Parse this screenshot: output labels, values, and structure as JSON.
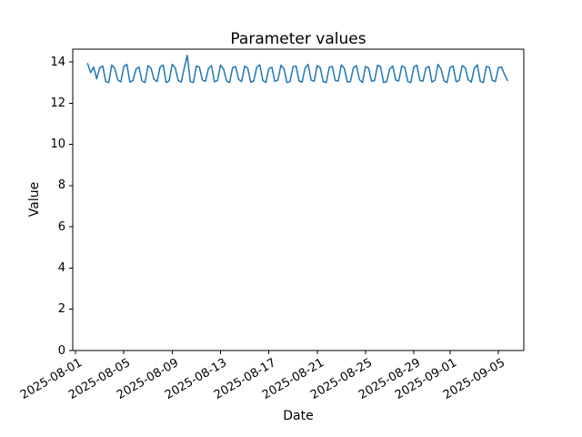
{
  "chart_data": {
    "type": "line",
    "title": "Parameter values",
    "xlabel": "Date",
    "ylabel": "Value",
    "line_color": "#1f77b4",
    "background_color": "#ffffff",
    "text_color": "#000000",
    "grid": false,
    "legend": null,
    "ylim": [
      0,
      14.62
    ],
    "xlim_days": [
      -0.23,
      37.1
    ],
    "yticks": [
      0,
      2,
      4,
      6,
      8,
      10,
      12,
      14
    ],
    "xticks": [
      {
        "label": "2025-08-01",
        "day": 0
      },
      {
        "label": "2025-08-05",
        "day": 4
      },
      {
        "label": "2025-08-09",
        "day": 8
      },
      {
        "label": "2025-08-13",
        "day": 12
      },
      {
        "label": "2025-08-17",
        "day": 16
      },
      {
        "label": "2025-08-21",
        "day": 20
      },
      {
        "label": "2025-08-25",
        "day": 24
      },
      {
        "label": "2025-08-29",
        "day": 28
      },
      {
        "label": "2025-09-01",
        "day": 31
      },
      {
        "label": "2025-09-05",
        "day": 35
      }
    ],
    "x_tick_rotation_deg": 30,
    "series": [
      {
        "name": "parameter-values",
        "x_start_day": 1.0,
        "x_step_days": 0.25,
        "values": [
          13.92,
          13.48,
          13.75,
          13.18,
          13.72,
          13.8,
          13.05,
          13.0,
          13.85,
          13.68,
          13.12,
          13.03,
          13.78,
          13.88,
          13.02,
          13.1,
          13.65,
          13.75,
          13.08,
          13.0,
          13.82,
          13.7,
          13.15,
          13.05,
          13.75,
          13.85,
          13.0,
          13.08,
          13.88,
          13.72,
          13.1,
          13.02,
          13.7,
          14.32,
          13.05,
          13.0,
          13.8,
          13.75,
          13.12,
          13.06,
          13.68,
          13.82,
          13.04,
          13.1,
          13.85,
          13.65,
          13.08,
          13.0,
          13.72,
          13.78,
          13.15,
          13.05,
          13.8,
          13.7,
          13.02,
          13.08,
          13.75,
          13.86,
          13.1,
          13.0,
          13.68,
          13.74,
          13.06,
          13.12,
          13.84,
          13.66,
          13.0,
          13.05,
          13.76,
          13.8,
          13.08,
          13.02,
          13.7,
          13.88,
          13.12,
          13.06,
          13.82,
          13.72,
          13.04,
          13.0,
          13.74,
          13.78,
          13.1,
          13.08,
          13.86,
          13.68,
          13.02,
          13.05,
          13.72,
          13.82,
          13.14,
          13.0,
          13.78,
          13.7,
          13.06,
          13.1,
          13.84,
          13.76,
          13.0,
          13.04,
          13.66,
          13.8,
          13.12,
          13.08,
          13.8,
          13.74,
          13.05,
          13.0,
          13.76,
          13.84,
          13.1,
          13.06,
          13.7,
          13.78,
          13.02,
          13.12,
          13.88,
          13.66,
          13.08,
          13.0,
          13.74,
          13.8,
          13.04,
          13.1,
          13.82,
          13.72,
          13.14,
          13.02,
          13.68,
          13.86,
          13.06,
          13.0,
          13.78,
          13.74,
          13.1,
          13.05,
          13.72,
          13.76,
          13.4,
          13.1
        ]
      }
    ]
  }
}
